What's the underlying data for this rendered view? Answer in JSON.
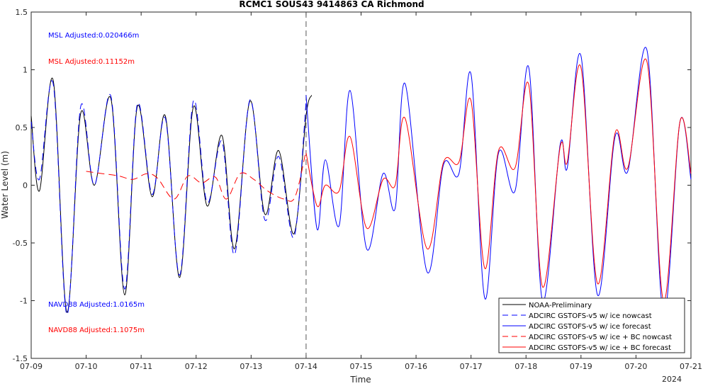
{
  "chart_data": {
    "type": "line",
    "title": "RCMC1 SOUS43 9414863 CA Richmond",
    "xlabel": "Time",
    "ylabel": "Water Level (m)",
    "x_year_label": "2024",
    "xlim": [
      "07-09",
      "07-21"
    ],
    "ylim": [
      -1.5,
      1.5
    ],
    "x_ticks": [
      "07-09",
      "07-10",
      "07-11",
      "07-12",
      "07-13",
      "07-14",
      "07-15",
      "07-16",
      "07-17",
      "07-18",
      "07-19",
      "07-20",
      "07-21"
    ],
    "y_ticks": [
      "-1.5",
      "-1",
      "-0.5",
      "0",
      "0.5",
      "1",
      "1.5"
    ],
    "vertical_marker_at_day": 5,
    "grid": false,
    "legend_position": "bottom-right",
    "annotations": [
      {
        "text": "MSL Adjusted:0.020466m",
        "color": "#0000ff"
      },
      {
        "text": "MSL Adjusted:0.11152m",
        "color": "#ff0000"
      },
      {
        "text": "NAVD88 Adjusted:1.0165m",
        "color": "#0000ff"
      },
      {
        "text": "NAVD88 Adjusted:1.1075m",
        "color": "#ff0000"
      }
    ],
    "series": [
      {
        "name": "NOAA-Preliminary",
        "color": "#000000",
        "dash": "solid",
        "x_days": [
          0,
          0.15,
          0.4,
          0.65,
          0.9,
          1.15,
          1.45,
          1.7,
          1.93,
          2.2,
          2.44,
          2.7,
          2.95,
          3.2,
          3.47,
          3.7,
          3.98,
          4.25,
          4.5,
          4.78,
          5,
          5.1
        ],
        "values": [
          0.6,
          -0.05,
          0.91,
          -1.1,
          0.62,
          0.0,
          0.75,
          -0.95,
          0.68,
          -0.1,
          0.6,
          -0.8,
          0.68,
          -0.18,
          0.43,
          -0.55,
          0.73,
          -0.25,
          0.3,
          -0.42,
          0.6,
          0.78
        ]
      },
      {
        "name": "ADCIRC GSTOFS-v5 w/ ice nowcast",
        "color": "#0000ff",
        "dash": "dashed",
        "x_days": [
          0,
          0.15,
          0.4,
          0.65,
          0.9,
          1.15,
          1.45,
          1.7,
          1.93,
          2.2,
          2.44,
          2.7,
          2.95,
          3.2,
          3.47,
          3.7,
          3.98,
          4.25,
          4.5,
          4.78,
          5
        ],
        "values": [
          0.55,
          0.05,
          0.88,
          -1.12,
          0.68,
          0.0,
          0.77,
          -0.9,
          0.7,
          -0.08,
          0.58,
          -0.78,
          0.73,
          -0.15,
          0.38,
          -0.6,
          0.74,
          -0.3,
          0.25,
          -0.45,
          0.72
        ]
      },
      {
        "name": "ADCIRC GSTOFS-v5 w/ ice forecast",
        "color": "#0000ff",
        "dash": "solid",
        "x_days": [
          5,
          5.2,
          5.35,
          5.6,
          5.8,
          6.1,
          6.4,
          6.62,
          6.8,
          7.2,
          7.5,
          7.78,
          8,
          8.25,
          8.5,
          8.8,
          9.05,
          9.3,
          9.62,
          9.75,
          10.0,
          10.3,
          10.62,
          10.85,
          11.2,
          11.5,
          11.8,
          12
        ],
        "values": [
          0.78,
          -0.38,
          0.22,
          -0.35,
          0.82,
          -0.55,
          0.1,
          -0.2,
          0.88,
          -0.75,
          0.18,
          0.1,
          0.96,
          -0.98,
          0.28,
          -0.05,
          1.02,
          -1.0,
          0.35,
          0.15,
          1.12,
          -0.95,
          0.42,
          0.12,
          1.17,
          -1.12,
          0.55,
          0.05
        ]
      },
      {
        "name": "ADCIRC GSTOFS-v5 w/ ice + BC nowcast",
        "color": "#ff0000",
        "dash": "dashed",
        "x_days": [
          1,
          1.3,
          1.6,
          1.85,
          2.1,
          2.3,
          2.6,
          2.85,
          3.1,
          3.35,
          3.55,
          3.8,
          4.05,
          4.3,
          4.6,
          4.8,
          5
        ],
        "values": [
          0.12,
          0.1,
          0.08,
          0.05,
          0.1,
          0.06,
          -0.12,
          0.08,
          0.02,
          0.07,
          -0.12,
          0.1,
          0.05,
          -0.05,
          -0.12,
          -0.1,
          0.3
        ]
      },
      {
        "name": "ADCIRC GSTOFS-v5 w/ ice + BC forecast",
        "color": "#ff0000",
        "dash": "solid",
        "x_days": [
          5,
          5.2,
          5.35,
          5.6,
          5.8,
          6.1,
          6.4,
          6.62,
          6.8,
          7.2,
          7.5,
          7.78,
          8,
          8.25,
          8.5,
          8.8,
          9.05,
          9.3,
          9.62,
          9.75,
          10.0,
          10.3,
          10.62,
          10.85,
          11.2,
          11.5,
          11.8,
          12
        ],
        "values": [
          0.28,
          -0.18,
          0.0,
          -0.05,
          0.42,
          -0.37,
          0.05,
          0.0,
          0.58,
          -0.55,
          0.2,
          0.2,
          0.73,
          -0.72,
          0.3,
          0.15,
          0.87,
          -0.88,
          0.33,
          0.2,
          1.02,
          -0.85,
          0.45,
          0.15,
          1.07,
          -1.0,
          0.55,
          0.1
        ]
      }
    ]
  }
}
